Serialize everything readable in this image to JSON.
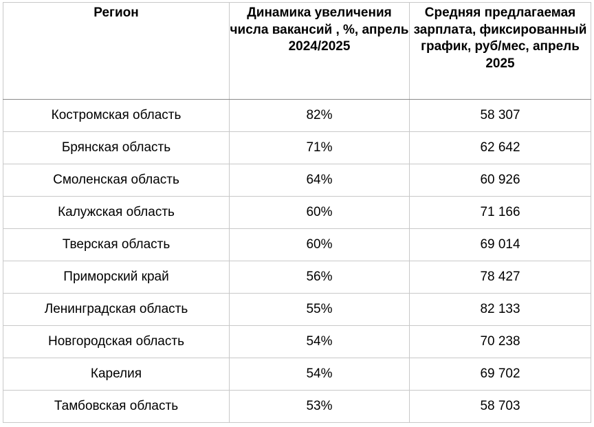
{
  "table": {
    "headers": [
      "Регион",
      "Динамика увеличения числа вакансий , %, апрель 2024/2025",
      "Средняя предлагаемая зарплата, фиксированный график, руб/мес, апрель 2025"
    ],
    "rows": [
      [
        "Костромская область",
        "82%",
        "58 307"
      ],
      [
        "Брянская область",
        "71%",
        "62 642"
      ],
      [
        "Смоленская область",
        "64%",
        "60 926"
      ],
      [
        "Калужская область",
        "60%",
        "71 166"
      ],
      [
        "Тверская область",
        "60%",
        "69 014"
      ],
      [
        "Приморский край",
        "56%",
        "78 427"
      ],
      [
        "Ленинградская область",
        "55%",
        "82 133"
      ],
      [
        "Новгородская область",
        "54%",
        "70 238"
      ],
      [
        "Карелия",
        "54%",
        "69 702"
      ],
      [
        "Тамбовская область",
        "53%",
        "58 703"
      ]
    ]
  },
  "colors": {
    "border": "#c8c8c8",
    "outer_border": "#8a8a8a",
    "text": "#000000",
    "background": "#ffffff"
  }
}
